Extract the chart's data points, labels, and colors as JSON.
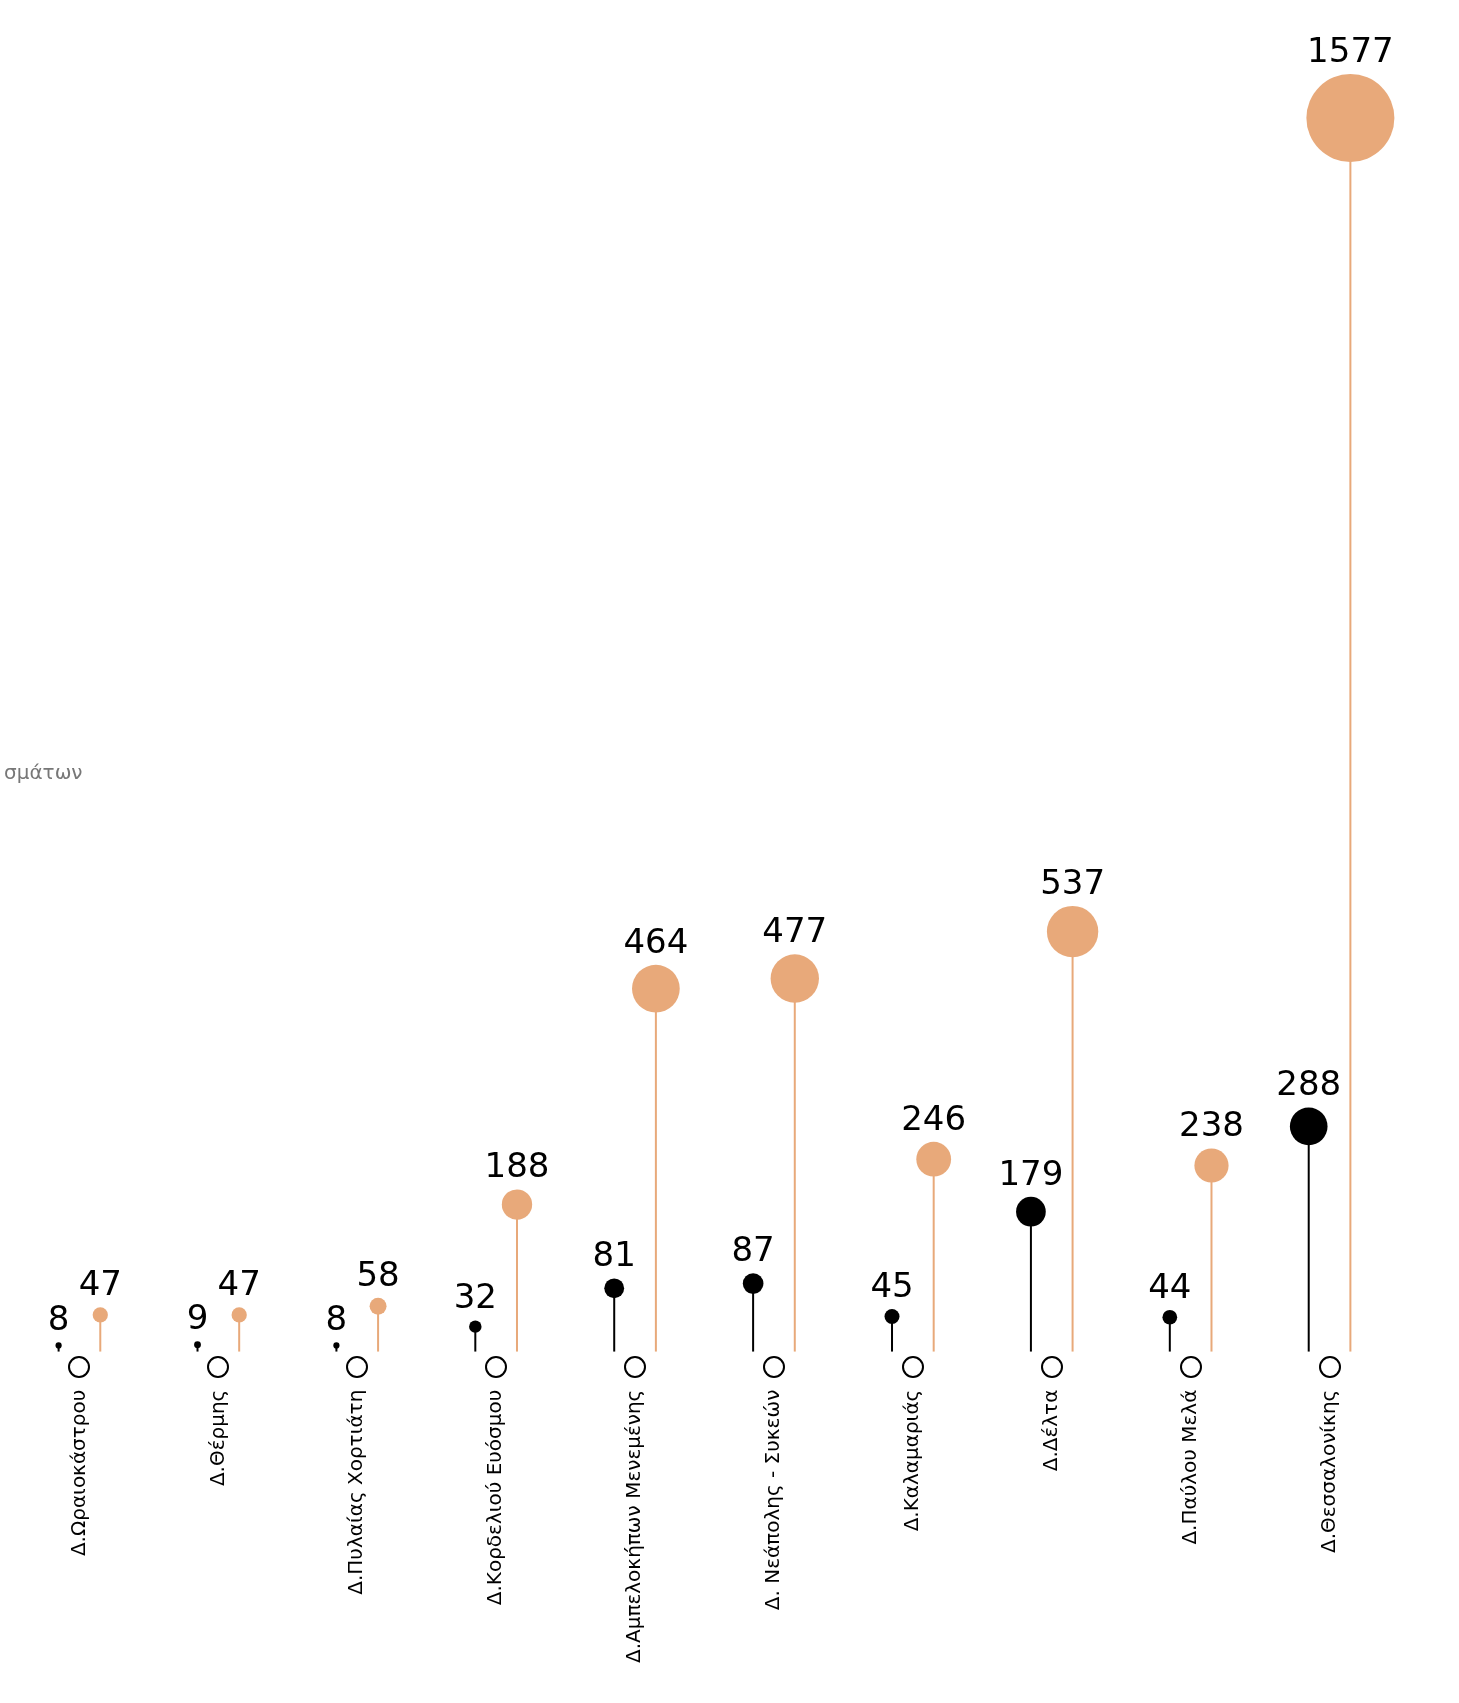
{
  "chart_data": {
    "type": "lollipop",
    "categories": [
      "Δ.Ωραιοκάστρου",
      "Δ.Θέρμης",
      "Δ.Πυλαίας Χορτιάτη",
      "Δ.Κορδελιού Ευόσμου",
      "Δ.Αμπελοκήπων Μενεμένης",
      "Δ. Νεάπολης - Συκεών",
      "Δ.Καλαμαριάς",
      "Δ.Δέλτα",
      "Δ.Παύλου Μελά",
      "Δ.Θεσσαλονίκης"
    ],
    "series": [
      {
        "color": "#000000",
        "values": [
          8,
          9,
          8,
          32,
          81,
          87,
          45,
          179,
          44,
          288
        ],
        "sizes": [
          0.005,
          0.006,
          0.005,
          0.02,
          0.051,
          0.055,
          0.029,
          0.114,
          0.028,
          0.183
        ]
      },
      {
        "color": "#e8a97a",
        "values": [
          47,
          47,
          58,
          188,
          464,
          477,
          246,
          537,
          238,
          1577
        ],
        "sizes": [
          0.03,
          0.03,
          0.037,
          0.119,
          0.294,
          0.302,
          0.156,
          0.341,
          0.151,
          1
        ]
      }
    ],
    "data_labels": true,
    "annotations": [
      "σμάτων"
    ]
  }
}
